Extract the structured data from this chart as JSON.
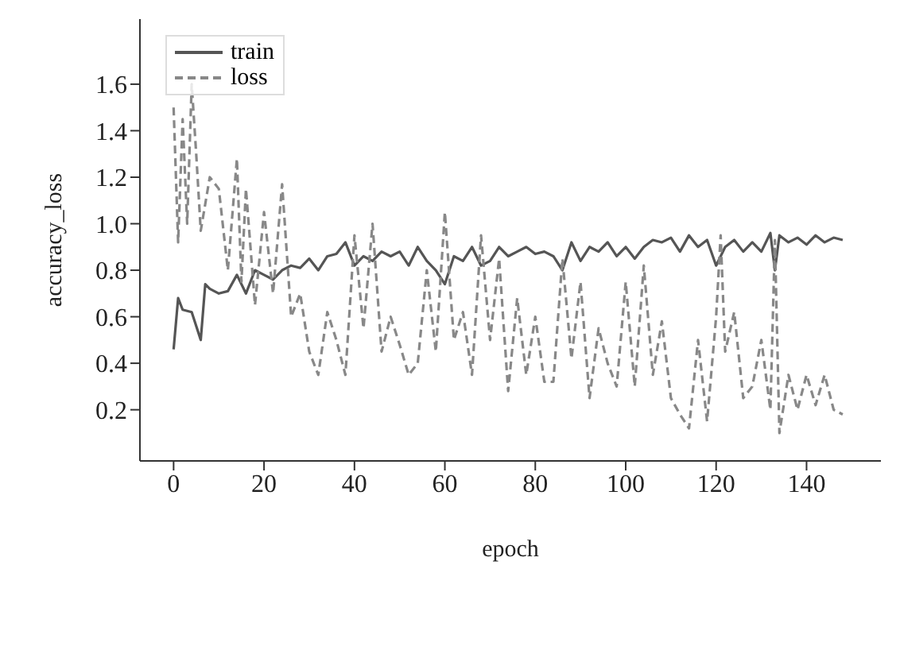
{
  "chart_data": {
    "type": "line",
    "xlabel": "epoch",
    "ylabel": "accuracy_loss",
    "xlim": [
      -7.45,
      156.45
    ],
    "xticks": [
      0,
      20,
      40,
      60,
      80,
      100,
      120,
      140
    ],
    "ylim": [
      -0.02,
      1.88
    ],
    "yticks": [
      0.2,
      0.4,
      0.6,
      0.8,
      {
        "value": 1,
        "label": "1.0"
      },
      1.2,
      1.4,
      1.6
    ],
    "legend": "top left",
    "grid": false,
    "series": [
      {
        "name": "train",
        "color": "#555555",
        "line_style": "solid",
        "x": [
          0,
          1,
          2,
          4,
          6,
          7,
          8,
          10,
          12,
          14,
          16,
          18,
          20,
          22,
          24,
          26,
          28,
          30,
          32,
          34,
          36,
          38,
          40,
          42,
          44,
          46,
          48,
          50,
          52,
          54,
          56,
          58,
          60,
          62,
          64,
          66,
          68,
          70,
          72,
          74,
          76,
          78,
          80,
          82,
          84,
          86,
          88,
          90,
          92,
          94,
          96,
          98,
          100,
          102,
          104,
          106,
          108,
          110,
          112,
          114,
          116,
          118,
          120,
          122,
          124,
          126,
          128,
          130,
          132,
          133,
          134,
          136,
          138,
          140,
          142,
          144,
          146,
          148
        ],
        "values": [
          0.46,
          0.68,
          0.63,
          0.62,
          0.5,
          0.74,
          0.72,
          0.7,
          0.71,
          0.78,
          0.7,
          0.8,
          0.78,
          0.76,
          0.8,
          0.82,
          0.81,
          0.85,
          0.8,
          0.86,
          0.87,
          0.92,
          0.82,
          0.86,
          0.84,
          0.88,
          0.86,
          0.88,
          0.82,
          0.9,
          0.84,
          0.8,
          0.74,
          0.86,
          0.84,
          0.9,
          0.82,
          0.84,
          0.9,
          0.86,
          0.88,
          0.9,
          0.87,
          0.88,
          0.86,
          0.8,
          0.92,
          0.84,
          0.9,
          0.88,
          0.92,
          0.86,
          0.9,
          0.85,
          0.9,
          0.93,
          0.92,
          0.94,
          0.88,
          0.95,
          0.9,
          0.93,
          0.82,
          0.9,
          0.93,
          0.88,
          0.92,
          0.88,
          0.96,
          0.8,
          0.95,
          0.92,
          0.94,
          0.91,
          0.95,
          0.92,
          0.94,
          0.93
        ]
      },
      {
        "name": "loss",
        "color": "#888888",
        "line_style": "dashed",
        "x": [
          0,
          1,
          2,
          3,
          4,
          5,
          6,
          8,
          10,
          12,
          14,
          15,
          16,
          18,
          20,
          22,
          24,
          26,
          28,
          30,
          32,
          34,
          36,
          38,
          40,
          42,
          44,
          46,
          48,
          50,
          52,
          54,
          56,
          58,
          60,
          62,
          64,
          66,
          68,
          70,
          72,
          74,
          76,
          78,
          80,
          82,
          84,
          86,
          88,
          90,
          92,
          94,
          96,
          98,
          100,
          102,
          104,
          106,
          108,
          110,
          112,
          114,
          116,
          118,
          120,
          121,
          122,
          124,
          126,
          128,
          130,
          132,
          133,
          134,
          136,
          138,
          140,
          142,
          144,
          146,
          148
        ],
        "values": [
          1.5,
          0.92,
          1.45,
          1.0,
          1.6,
          1.3,
          0.97,
          1.2,
          1.15,
          0.8,
          1.28,
          0.75,
          1.15,
          0.65,
          1.05,
          0.7,
          1.17,
          0.6,
          0.7,
          0.45,
          0.35,
          0.62,
          0.5,
          0.35,
          0.95,
          0.55,
          1.0,
          0.45,
          0.6,
          0.48,
          0.35,
          0.4,
          0.8,
          0.45,
          1.05,
          0.5,
          0.62,
          0.35,
          0.95,
          0.5,
          0.85,
          0.28,
          0.68,
          0.35,
          0.6,
          0.32,
          0.32,
          0.85,
          0.42,
          0.75,
          0.25,
          0.55,
          0.4,
          0.3,
          0.75,
          0.3,
          0.82,
          0.35,
          0.58,
          0.25,
          0.18,
          0.12,
          0.5,
          0.15,
          0.6,
          0.95,
          0.45,
          0.62,
          0.25,
          0.3,
          0.5,
          0.2,
          0.93,
          0.1,
          0.35,
          0.2,
          0.35,
          0.22,
          0.35,
          0.2,
          0.18
        ]
      }
    ]
  }
}
